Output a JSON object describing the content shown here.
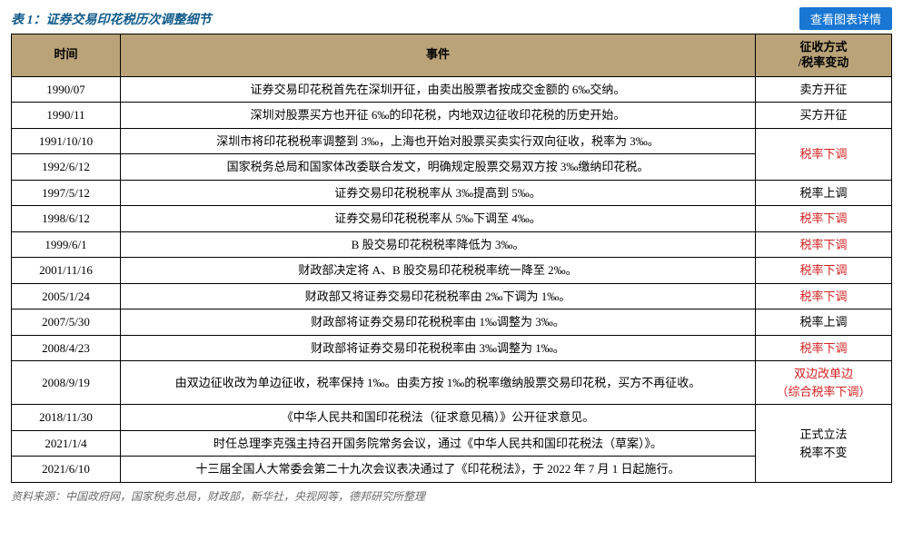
{
  "title": "表 1：证券交易印花税历次调整细节",
  "detail_button": "查看图表详情",
  "headers": {
    "time": "时间",
    "event": "事件",
    "change": "征收方式\n/税率变动"
  },
  "colors": {
    "header_bg": "#baa378",
    "title_color": "#0f5a8a",
    "button_bg": "#1976d2",
    "red_text": "#d32121",
    "border": "#000000",
    "source_color": "#6b6b6b"
  },
  "rows": [
    {
      "time": "1990/07",
      "event": "证券交易印花税首先在深圳开征，由卖出股票者按成交金额的 6‰交纳。",
      "change": "卖方开征",
      "red": false,
      "rowspan": 1
    },
    {
      "time": "1990/11",
      "event": "深圳对股票买方也开征 6‰的印花税，内地双边征收印花税的历史开始。",
      "change": "买方开征",
      "red": false,
      "rowspan": 1
    },
    {
      "time": "1991/10/10",
      "event": "深圳市将印花税税率调整到 3‰，上海也开始对股票买卖实行双向征收，税率为 3‰。",
      "change": "税率下调",
      "red": true,
      "rowspan": 2
    },
    {
      "time": "1992/6/12",
      "event": "国家税务总局和国家体改委联合发文，明确规定股票交易双方按 3‰缴纳印花税。",
      "change": null,
      "red": false,
      "rowspan": 0
    },
    {
      "time": "1997/5/12",
      "event": "证券交易印花税税率从 3‰提高到 5‰。",
      "change": "税率上调",
      "red": false,
      "rowspan": 1
    },
    {
      "time": "1998/6/12",
      "event": "证券交易印花税税率从 5‰下调至 4‰。",
      "change": "税率下调",
      "red": true,
      "rowspan": 1
    },
    {
      "time": "1999/6/1",
      "event": "B 股交易印花税税率降低为 3‰。",
      "change": "税率下调",
      "red": true,
      "rowspan": 1
    },
    {
      "time": "2001/11/16",
      "event": "财政部决定将 A、B 股交易印花税税率统一降至 2‰。",
      "change": "税率下调",
      "red": true,
      "rowspan": 1
    },
    {
      "time": "2005/1/24",
      "event": "财政部又将证券交易印花税税率由 2‰下调为 1‰。",
      "change": "税率下调",
      "red": true,
      "rowspan": 1
    },
    {
      "time": "2007/5/30",
      "event": "财政部将证券交易印花税税率由 1‰调整为 3‰。",
      "change": "税率上调",
      "red": false,
      "rowspan": 1
    },
    {
      "time": "2008/4/23",
      "event": "财政部将证券交易印花税税率由 3‰调整为 1‰。",
      "change": "税率下调",
      "red": true,
      "rowspan": 1
    },
    {
      "time": "2008/9/19",
      "event": "由双边征收改为单边征收，税率保持 1‰。由卖方按 1‰的税率缴纳股票交易印花税，买方不再征收。",
      "change": "双边改单边\n（综合税率下调）",
      "red": true,
      "rowspan": 1
    },
    {
      "time": "2018/11/30",
      "event": "《中华人民共和国印花税法（征求意见稿）》公开征求意见。",
      "change": "正式立法\n税率不变",
      "red": false,
      "rowspan": 3
    },
    {
      "time": "2021/1/4",
      "event": "时任总理李克强主持召开国务院常务会议，通过《中华人民共和国印花税法（草案）》。",
      "change": null,
      "red": false,
      "rowspan": 0
    },
    {
      "time": "2021/6/10",
      "event": "十三届全国人大常委会第二十九次会议表决通过了《印花税法》，于 2022 年 7 月 1 日起施行。",
      "change": null,
      "red": false,
      "rowspan": 0
    }
  ],
  "source": "资料来源：中国政府网，国家税务总局，财政部，新华社，央视网等，德邦研究所整理"
}
